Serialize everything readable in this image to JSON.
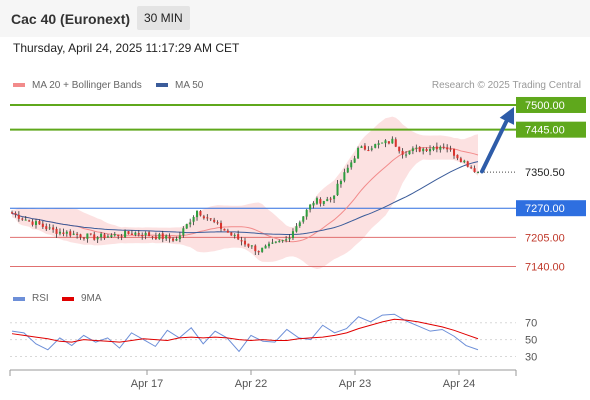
{
  "header": {
    "title": "Cac 40 (Euronext)",
    "timeframe": "30 MIN"
  },
  "datetime": "Thursday, April 24, 2025 11:17:29 AM CET",
  "legend": {
    "ma20_label": "MA 20 + Bollinger Bands",
    "ma50_label": "MA 50",
    "source": "Research © 2025 Trading Central",
    "ma20_color": "#f28b8b",
    "ma50_color": "#3b5c9a"
  },
  "rsi_legend": {
    "rsi_label": "RSI",
    "ma_label": "9MA",
    "rsi_color": "#6d8fd8",
    "ma_color": "#e00000"
  },
  "chart_data": [
    {
      "type": "candlestick",
      "title": "Cac 40 (Euronext)",
      "ylim": [
        7110,
        7520
      ],
      "x_ticks": [
        "Apr 17",
        "Apr 22",
        "Apr 23",
        "Apr 24"
      ],
      "last_price": 7350.5,
      "levels": [
        {
          "value": 7500.0,
          "label": "7500.00",
          "kind": "resistance",
          "color": "#5fa81c"
        },
        {
          "value": 7445.0,
          "label": "7445.00",
          "kind": "resistance",
          "color": "#5fa81c"
        },
        {
          "value": 7270.0,
          "label": "7270.00",
          "kind": "pivot",
          "color": "#2e6fe0"
        },
        {
          "value": 7205.0,
          "label": "7205.00",
          "kind": "support",
          "color": "#e07070"
        },
        {
          "value": 7140.0,
          "label": "7140.00",
          "kind": "support",
          "color": "#e07070"
        }
      ],
      "target_arrow": {
        "from": 7352,
        "to": 7500,
        "color": "#2e5ca8"
      },
      "segments": [
        {
          "from": 7258,
          "to": 7220,
          "n": 12
        },
        {
          "from": 7220,
          "to": 7205,
          "n": 12
        },
        {
          "from": 7205,
          "to": 7215,
          "n": 12
        },
        {
          "from": 7215,
          "to": 7200,
          "n": 12
        },
        {
          "from": 7200,
          "to": 7265,
          "n": 6
        },
        {
          "from": 7265,
          "to": 7210,
          "n": 10
        },
        {
          "from": 7210,
          "to": 7175,
          "n": 8
        },
        {
          "from": 7175,
          "to": 7200,
          "n": 8
        },
        {
          "from": 7200,
          "to": 7285,
          "n": 8
        },
        {
          "from": 7285,
          "to": 7290,
          "n": 5
        },
        {
          "from": 7290,
          "to": 7400,
          "n": 8
        },
        {
          "from": 7400,
          "to": 7420,
          "n": 10
        },
        {
          "from": 7420,
          "to": 7395,
          "n": 3
        },
        {
          "from": 7395,
          "to": 7410,
          "n": 12
        },
        {
          "from": 7410,
          "to": 7350,
          "n": 10
        }
      ]
    },
    {
      "type": "line",
      "title": "RSI",
      "ylim": [
        20,
        85
      ],
      "y_ticks": [
        70,
        50,
        30
      ],
      "rsi_points": [
        60,
        58,
        45,
        38,
        52,
        43,
        55,
        47,
        52,
        40,
        58,
        50,
        42,
        61,
        52,
        64,
        45,
        60,
        52,
        36,
        55,
        48,
        47,
        62,
        52,
        50,
        67,
        58,
        63,
        77,
        71,
        79,
        80,
        72,
        66,
        60,
        62,
        54,
        43,
        38
      ],
      "ma_points": [
        57,
        55,
        53,
        51,
        48,
        47,
        50,
        49,
        48,
        47,
        49,
        51,
        50,
        49,
        52,
        53,
        52,
        53,
        52,
        50,
        49,
        50,
        49,
        49,
        51,
        52,
        53,
        55,
        58,
        63,
        67,
        71,
        74,
        73,
        71,
        68,
        65,
        61,
        56,
        51
      ]
    }
  ]
}
